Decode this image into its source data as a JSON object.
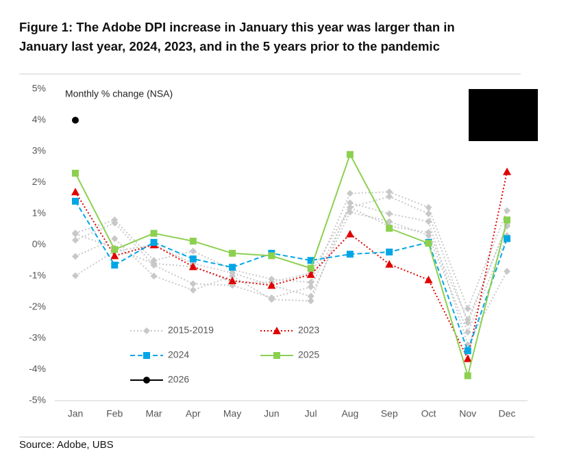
{
  "chart_data": {
    "type": "line",
    "title": [
      "Figure 1: The Adobe DPI increase in January this year was larger than in",
      "January last year, 2024, 2023, and in the 5 years prior to the pandemic"
    ],
    "annotation": "Monthly % change (NSA)",
    "source": "Source: Adobe, UBS",
    "categories": [
      "Jan",
      "Feb",
      "Mar",
      "Apr",
      "May",
      "Jun",
      "Jul",
      "Aug",
      "Sep",
      "Oct",
      "Nov",
      "Dec"
    ],
    "ylim": [
      -5,
      5
    ],
    "yticks": [
      {
        "value": 5,
        "label": "5%"
      },
      {
        "value": 4,
        "label": "4%"
      },
      {
        "value": 3,
        "label": "3%"
      },
      {
        "value": 2,
        "label": "2%"
      },
      {
        "value": 1,
        "label": "1%"
      },
      {
        "value": 0,
        "label": "0%"
      },
      {
        "value": -1,
        "label": "-1%"
      },
      {
        "value": -2,
        "label": "-2%"
      },
      {
        "value": -3,
        "label": "-3%"
      },
      {
        "value": -4,
        "label": "-4%"
      },
      {
        "value": -5,
        "label": "-5%"
      }
    ],
    "series": [
      {
        "name": "2015-2019",
        "color": "#c8c8c8",
        "marker": "diamond",
        "dash": "dotted",
        "values": [
          [
            0.38,
            0.8,
            -0.5,
            -0.2,
            -0.8,
            -1.1,
            -1.2,
            1.65,
            1.7,
            1.2,
            -2.05,
            1.1
          ],
          [
            0.15,
            0.7,
            -0.65,
            -1.25,
            -1.3,
            -1.7,
            -1.35,
            1.2,
            1.55,
            1.0,
            -2.5,
            0.65
          ],
          [
            -0.37,
            0.2,
            -1.0,
            -1.45,
            -1.0,
            -1.75,
            -1.8,
            1.35,
            1.0,
            0.75,
            -3.2,
            -0.85
          ],
          [
            -0.99,
            -0.2,
            0.0,
            -0.6,
            -0.9,
            -1.3,
            -1.65,
            1.05,
            0.75,
            0.3,
            -2.8,
            0.3
          ],
          [
            0.35,
            -0.1,
            -0.6,
            -0.7,
            -1.2,
            -1.2,
            -0.9,
            1.2,
            0.6,
            0.4,
            -2.4,
            0.6
          ]
        ]
      },
      {
        "name": "2023",
        "color": "#e00000",
        "marker": "triangle",
        "dash": "dotted",
        "values": [
          1.7,
          -0.35,
          0.0,
          -0.7,
          -1.15,
          -1.3,
          -0.95,
          0.35,
          -0.62,
          -1.12,
          -3.65,
          2.35
        ]
      },
      {
        "name": "2024",
        "color": "#00a6e6",
        "marker": "square",
        "dash": "dashed",
        "values": [
          1.4,
          -0.65,
          0.08,
          -0.45,
          -0.72,
          -0.27,
          -0.5,
          -0.3,
          -0.23,
          0.08,
          -3.4,
          0.2
        ]
      },
      {
        "name": "2025",
        "color": "#8cd050",
        "marker": "square",
        "dash": "solid",
        "values": [
          2.3,
          -0.15,
          0.37,
          0.12,
          -0.27,
          -0.35,
          -0.75,
          2.9,
          0.53,
          0.05,
          -4.2,
          0.8
        ]
      },
      {
        "name": "2026",
        "color": "#000000",
        "marker": "circle",
        "dash": "solid",
        "values": [
          4.0,
          null,
          null,
          null,
          null,
          null,
          null,
          null,
          null,
          null,
          null,
          null
        ]
      }
    ]
  }
}
